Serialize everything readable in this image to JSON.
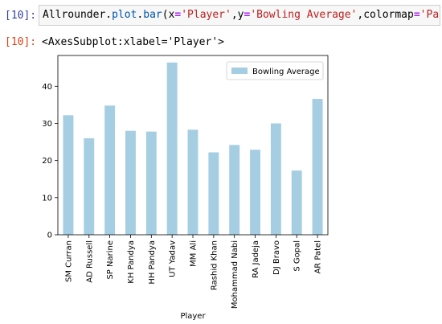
{
  "cell": {
    "in_prompt": "[10]:",
    "out_prompt": "[10]:",
    "code": {
      "obj": "Allrounder",
      "dot1": ".",
      "attr1": "plot",
      "dot2": ".",
      "attr2": "bar",
      "p_open": "(",
      "kw_x": "x",
      "eq1": "=",
      "val_x": "'Player'",
      "comma1": ",",
      "kw_y": "y",
      "eq2": "=",
      "val_y": "'Bowling Average'",
      "comma2": ",",
      "kw_cmap": "colormap",
      "eq3": "=",
      "val_cmap": "'Paired'",
      "p_close": ")"
    },
    "output_text": "<AxesSubplot:xlabel='Player'>"
  },
  "colors": {
    "bar": "#a6cee3",
    "in_prompt": "#303f9f",
    "out_prompt": "#d84315"
  },
  "chart_data": {
    "type": "bar",
    "categories": [
      "SM Curran",
      "AD Russell",
      "SP Narine",
      "KH Pandya",
      "HH Pandya",
      "UT Yadav",
      "MM Ali",
      "Rashid Khan",
      "Mohammad Nabi",
      "RA Jadeja",
      "DJ Bravo",
      "S Gopal",
      "AR Patel"
    ],
    "series": [
      {
        "name": "Bowling Average",
        "values": [
          32.2,
          26.0,
          34.8,
          28.0,
          27.8,
          46.4,
          28.3,
          22.2,
          24.2,
          22.9,
          30.0,
          17.3,
          36.6
        ]
      }
    ],
    "xlabel": "Player",
    "ylabel": "",
    "ylim": [
      0,
      48.3
    ],
    "yticks": [
      0,
      10,
      20,
      30,
      40
    ],
    "grid": false,
    "legend": "top-right"
  }
}
